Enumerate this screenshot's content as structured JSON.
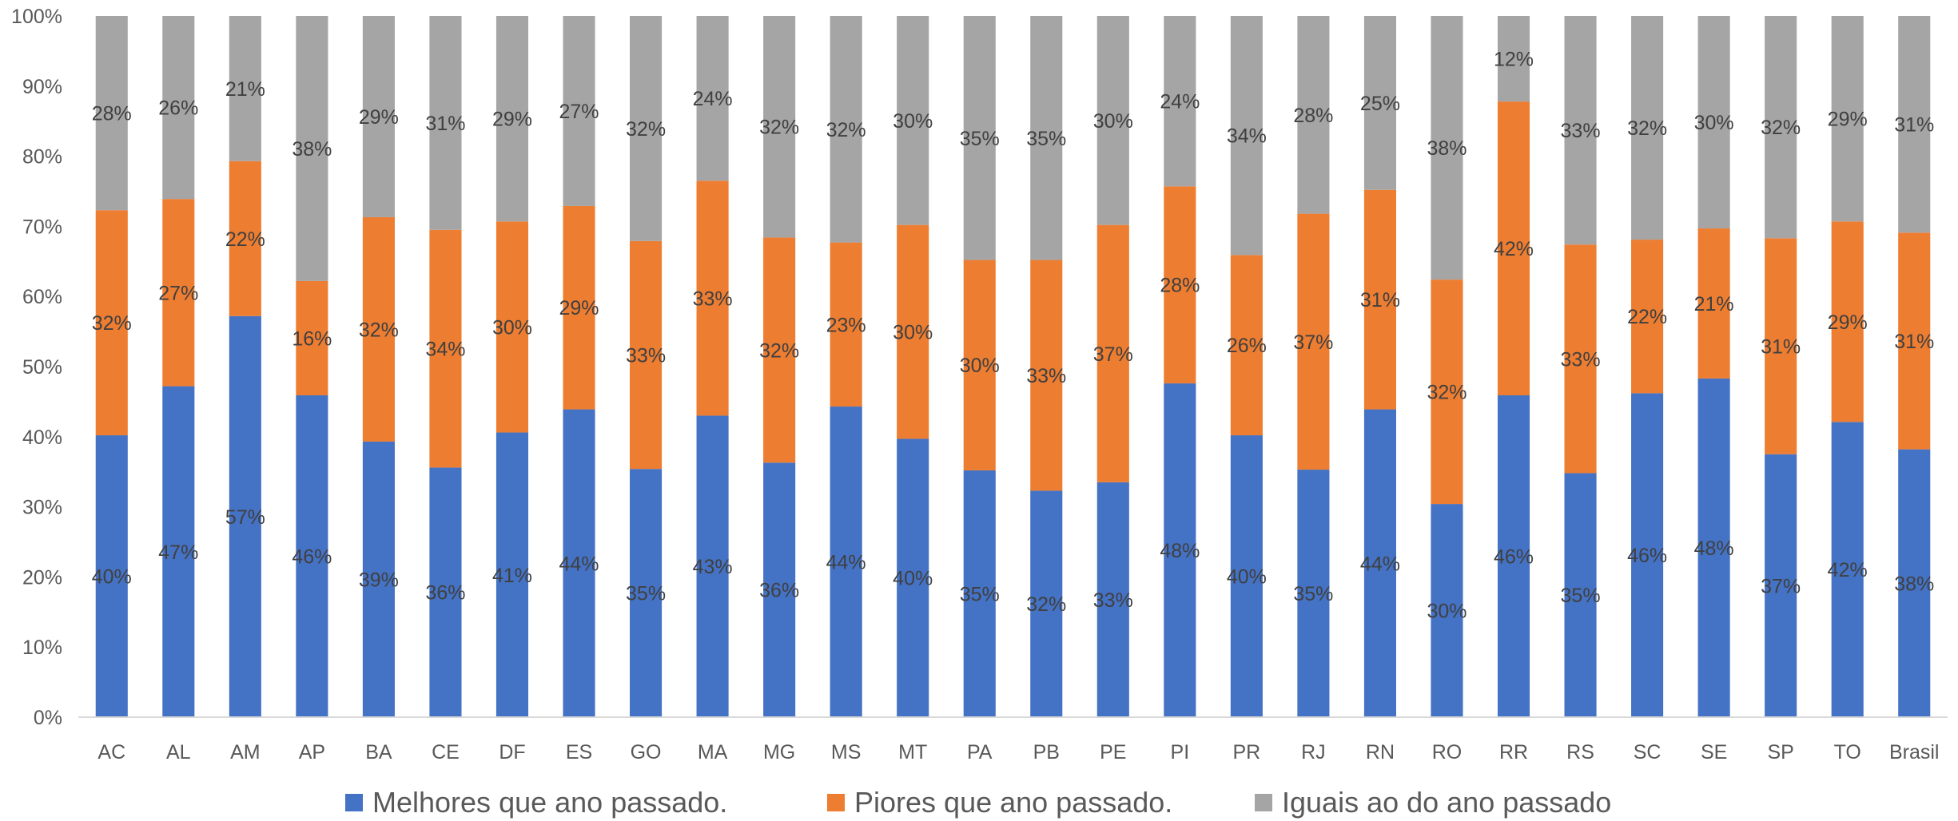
{
  "chart_data": {
    "type": "bar",
    "stacked": true,
    "percent_stacked": true,
    "categories": [
      "AC",
      "AL",
      "AM",
      "AP",
      "BA",
      "CE",
      "DF",
      "ES",
      "GO",
      "MA",
      "MG",
      "MS",
      "MT",
      "PA",
      "PB",
      "PE",
      "PI",
      "PR",
      "RJ",
      "RN",
      "RO",
      "RR",
      "RS",
      "SC",
      "SE",
      "SP",
      "TO",
      "Brasil"
    ],
    "series": [
      {
        "name": "Melhores que ano passado.",
        "color": "#4472C4",
        "values": [
          40.2,
          47.2,
          57.2,
          45.9,
          39.3,
          35.6,
          40.6,
          43.9,
          35.4,
          43.0,
          36.3,
          44.3,
          39.7,
          35.2,
          32.3,
          33.5,
          47.6,
          40.2,
          35.3,
          43.9,
          30.4,
          45.9,
          34.8,
          46.2,
          48.3,
          37.5,
          42.1,
          38.2
        ],
        "labels": [
          "40%",
          "47%",
          "57%",
          "46%",
          "39%",
          "36%",
          "41%",
          "44%",
          "35%",
          "43%",
          "36%",
          "44%",
          "40%",
          "35%",
          "32%",
          "33%",
          "48%",
          "40%",
          "35%",
          "44%",
          "30%",
          "46%",
          "35%",
          "46%",
          "48%",
          "37%",
          "42%",
          "38%"
        ]
      },
      {
        "name": "Piores que ano passado.",
        "color": "#ED7D31",
        "values": [
          32.1,
          26.7,
          22.1,
          16.3,
          32.0,
          33.9,
          30.1,
          29.0,
          32.5,
          33.5,
          32.1,
          23.4,
          30.5,
          30.0,
          32.9,
          36.7,
          28.1,
          25.7,
          36.5,
          31.3,
          32.0,
          41.9,
          32.6,
          21.9,
          21.4,
          30.8,
          28.6,
          30.9
        ],
        "labels": [
          "32%",
          "27%",
          "22%",
          "16%",
          "32%",
          "34%",
          "30%",
          "29%",
          "33%",
          "33%",
          "32%",
          "23%",
          "30%",
          "30%",
          "33%",
          "37%",
          "28%",
          "26%",
          "37%",
          "31%",
          "32%",
          "42%",
          "33%",
          "22%",
          "21%",
          "31%",
          "29%",
          "31%"
        ]
      },
      {
        "name": "Iguais ao do ano passado",
        "color": "#A5A5A5",
        "values": [
          27.7,
          26.1,
          20.7,
          37.8,
          28.7,
          30.5,
          29.3,
          27.1,
          32.1,
          23.5,
          31.6,
          32.3,
          29.8,
          34.8,
          34.8,
          29.8,
          24.3,
          34.1,
          28.2,
          24.8,
          37.6,
          12.2,
          32.6,
          31.9,
          30.3,
          31.7,
          29.3,
          30.9
        ],
        "labels": [
          "28%",
          "26%",
          "21%",
          "38%",
          "29%",
          "31%",
          "29%",
          "27%",
          "32%",
          "24%",
          "32%",
          "32%",
          "30%",
          "35%",
          "35%",
          "30%",
          "24%",
          "34%",
          "28%",
          "25%",
          "38%",
          "12%",
          "33%",
          "32%",
          "30%",
          "32%",
          "29%",
          "31%"
        ]
      }
    ],
    "y_ticks": [
      "0%",
      "10%",
      "20%",
      "30%",
      "40%",
      "50%",
      "60%",
      "70%",
      "80%",
      "90%",
      "100%"
    ],
    "ylim": [
      0,
      100
    ],
    "grid": false,
    "legend_position": "bottom"
  }
}
